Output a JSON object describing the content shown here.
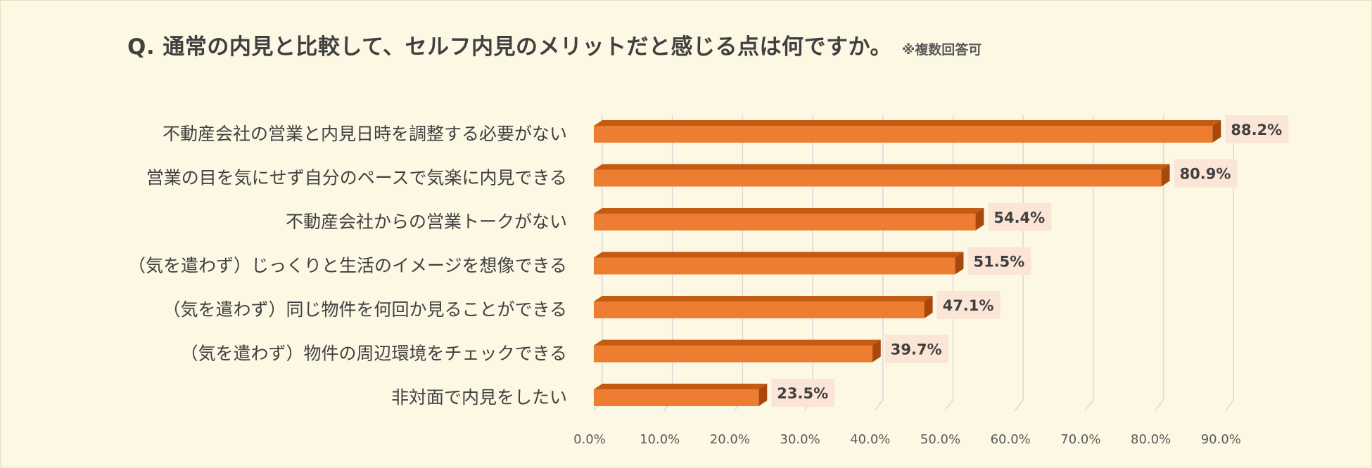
{
  "chart_data": {
    "type": "bar",
    "orientation": "horizontal",
    "title": "Q. 通常の内見と比較して、セルフ内見のメリットだと感じる点は何ですか。",
    "subtitle": "※複数回答可",
    "categories": [
      "不動産会社の営業と内見日時を調整する必要がない",
      "営業の目を気にせず自分のペースで気楽に内見できる",
      "不動産会社からの営業トークがない",
      "（気を遣わず）じっくりと生活のイメージを想像できる",
      "（気を遣わず）同じ物件を何回か見ることができる",
      "（気を遣わず）物件の周辺環境をチェックできる",
      "非対面で内見をしたい"
    ],
    "values": [
      88.2,
      80.9,
      54.4,
      51.5,
      47.1,
      39.7,
      23.5
    ],
    "data_labels": [
      "88.2%",
      "80.9%",
      "54.4%",
      "51.5%",
      "47.1%",
      "39.7%",
      "23.5%"
    ],
    "x_ticks": [
      "0.0%",
      "10.0%",
      "20.0%",
      "30.0%",
      "40.0%",
      "50.0%",
      "60.0%",
      "70.0%",
      "80.0%",
      "90.0%"
    ],
    "xlim": [
      0,
      90
    ],
    "grid": true,
    "legend": "none",
    "colors": {
      "bar_front": "#ed7d31",
      "bar_top": "#c55a11",
      "bar_side": "#a9480c",
      "gridline": "#d9d9d9",
      "label_box": "#fbe5d6",
      "background": "#fdf8e4"
    }
  }
}
